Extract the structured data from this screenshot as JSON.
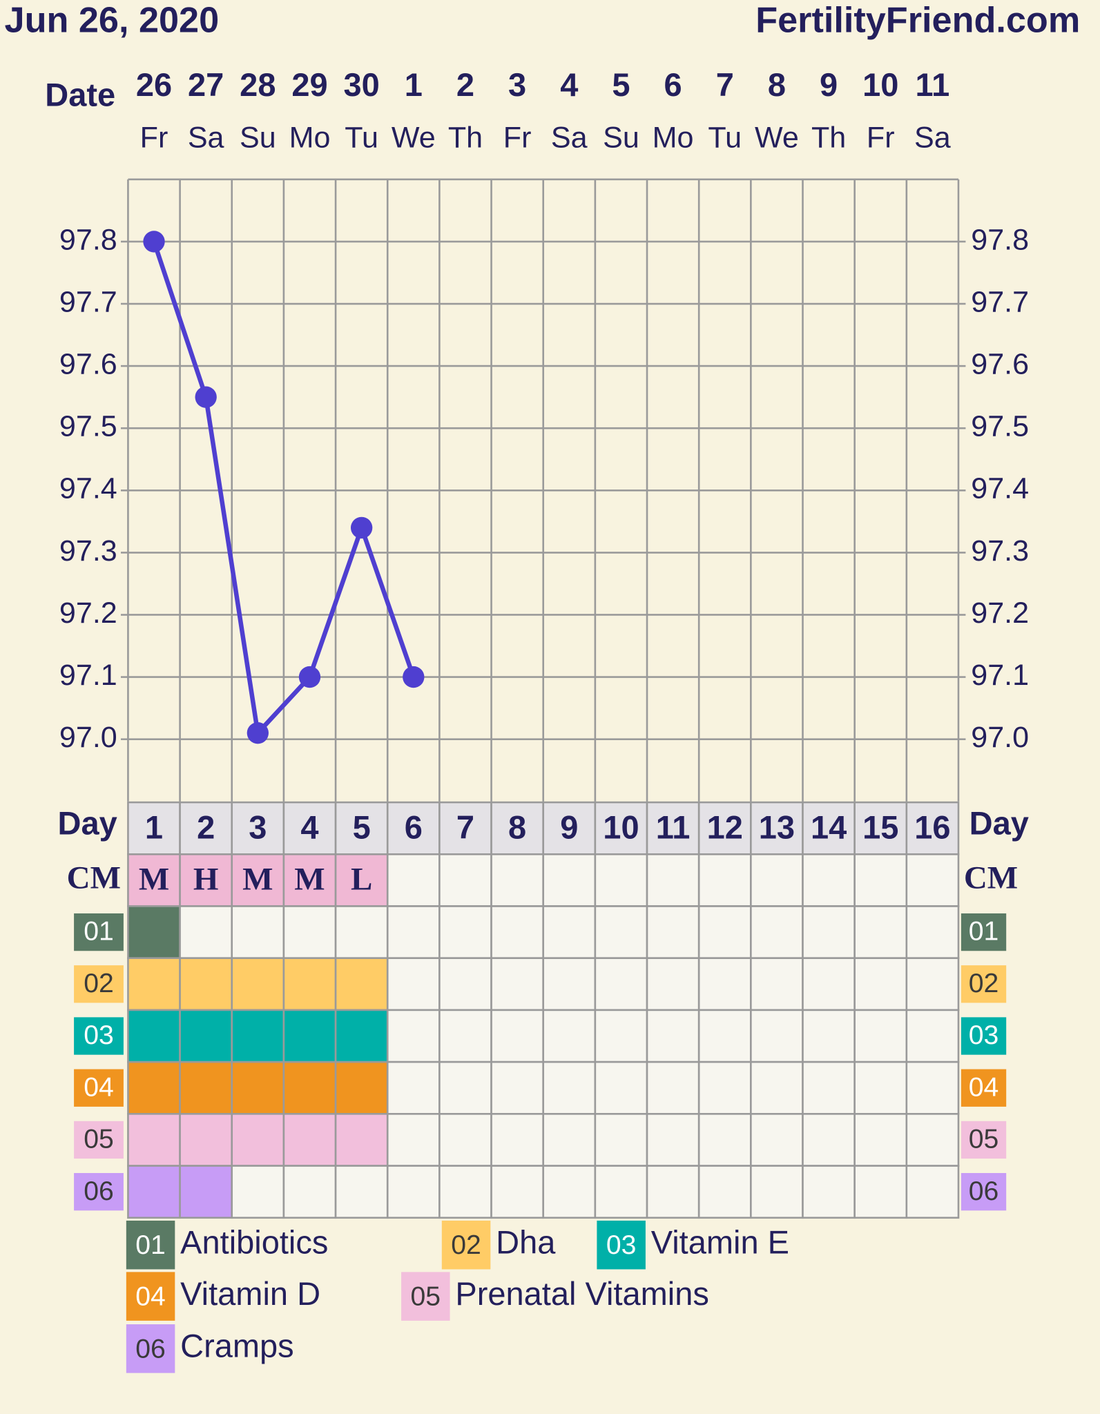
{
  "chart_data": {
    "type": "line",
    "title": "Jun 26, 2020",
    "site": "FertilityFriend.com",
    "date_label": "Date",
    "categories": [
      "26",
      "27",
      "28",
      "29",
      "30",
      "1",
      "2",
      "3",
      "4",
      "5",
      "6",
      "7",
      "8",
      "9",
      "10",
      "11"
    ],
    "weekdays": [
      "Fr",
      "Sa",
      "Su",
      "Mo",
      "Tu",
      "We",
      "Th",
      "Fr",
      "Sa",
      "Su",
      "Mo",
      "Tu",
      "We",
      "Th",
      "Fr",
      "Sa"
    ],
    "values": [
      97.8,
      97.55,
      97.01,
      97.1,
      97.34,
      97.1,
      null,
      null,
      null,
      null,
      null,
      null,
      null,
      null,
      null,
      null
    ],
    "color": "#4f3fd0",
    "ylim": [
      96.9,
      97.9
    ],
    "yticks": [
      {
        "value": 97,
        "label": "97.0"
      },
      97.1,
      97.2,
      97.3,
      97.4,
      97.5,
      97.6,
      97.7,
      97.8
    ],
    "grid": true,
    "day_label": "Day",
    "days": [
      1,
      2,
      3,
      4,
      5,
      6,
      7,
      8,
      9,
      10,
      11,
      12,
      13,
      14,
      15,
      16
    ],
    "cm_label": "CM",
    "cm": [
      "M",
      "H",
      "M",
      "M",
      "L",
      null,
      null,
      null,
      null,
      null,
      null,
      null,
      null,
      null,
      null,
      null
    ],
    "cm_color": "#f0b8d4",
    "rows": [
      {
        "code": "01",
        "name": "Antibiotics",
        "color": "#5a7a64",
        "days": [
          true,
          false,
          false,
          false,
          false,
          false,
          false,
          false,
          false,
          false,
          false,
          false,
          false,
          false,
          false,
          false
        ]
      },
      {
        "code": "02",
        "name": "Dha",
        "color": "#ffcc66",
        "days": [
          true,
          true,
          true,
          true,
          true,
          false,
          false,
          false,
          false,
          false,
          false,
          false,
          false,
          false,
          false,
          false
        ]
      },
      {
        "code": "03",
        "name": "Vitamin E",
        "color": "#00b0a8",
        "days": [
          true,
          true,
          true,
          true,
          true,
          false,
          false,
          false,
          false,
          false,
          false,
          false,
          false,
          false,
          false,
          false
        ]
      },
      {
        "code": "04",
        "name": "Vitamin D",
        "color": "#f0941f",
        "days": [
          true,
          true,
          true,
          true,
          true,
          false,
          false,
          false,
          false,
          false,
          false,
          false,
          false,
          false,
          false,
          false
        ]
      },
      {
        "code": "05",
        "name": "Prenatal Vitamins",
        "color": "#f2bfdc",
        "days": [
          true,
          true,
          true,
          true,
          true,
          false,
          false,
          false,
          false,
          false,
          false,
          false,
          false,
          false,
          false,
          false
        ]
      },
      {
        "code": "06",
        "name": "Cramps",
        "color": "#c79cf6",
        "days": [
          true,
          true,
          false,
          false,
          false,
          false,
          false,
          false,
          false,
          false,
          false,
          false,
          false,
          false,
          false,
          false
        ]
      }
    ]
  }
}
